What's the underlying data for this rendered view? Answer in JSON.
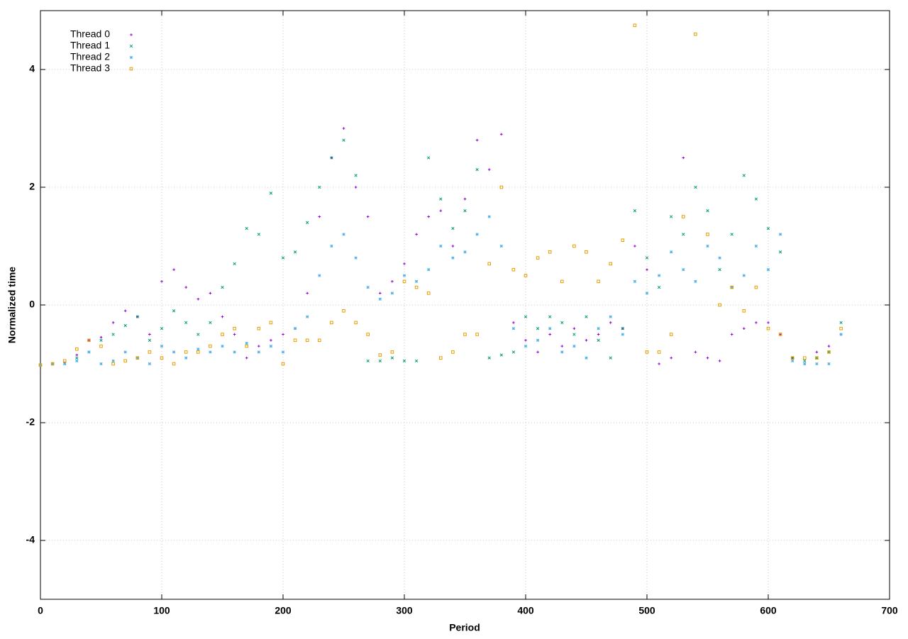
{
  "chart_data": {
    "type": "scatter",
    "x_label": "Period",
    "y_label": "Normalized time",
    "xlim": [
      0,
      700
    ],
    "ylim": [
      -5,
      5
    ],
    "xticks": [
      0,
      100,
      200,
      300,
      400,
      500,
      600,
      700
    ],
    "yticks": [
      -4,
      -2,
      0,
      2,
      4
    ],
    "grid": true,
    "legend": "top-left",
    "x": [
      0,
      10,
      20,
      30,
      40,
      50,
      60,
      70,
      80,
      90,
      100,
      110,
      120,
      130,
      140,
      150,
      160,
      170,
      180,
      190,
      200,
      210,
      220,
      230,
      240,
      250,
      260,
      270,
      280,
      290,
      300,
      310,
      320,
      330,
      340,
      350,
      360,
      370,
      380,
      390,
      400,
      410,
      420,
      430,
      440,
      450,
      460,
      470,
      480,
      490,
      500,
      510,
      520,
      530,
      540,
      550,
      560,
      570,
      580,
      590,
      600,
      610,
      620,
      630,
      640,
      650,
      660
    ],
    "series": [
      {
        "name": "Thread 0",
        "color": "#9400d3",
        "marker": "plus",
        "values": [
          -1.02,
          -1.0,
          -0.98,
          -0.85,
          -0.6,
          -0.55,
          -0.3,
          -0.1,
          -0.2,
          -0.5,
          0.4,
          0.6,
          0.3,
          0.1,
          0.2,
          -0.2,
          -0.5,
          -0.9,
          -0.7,
          -0.6,
          -0.5,
          -0.4,
          0.2,
          1.5,
          2.5,
          3.0,
          2.0,
          1.5,
          0.2,
          0.4,
          0.7,
          1.2,
          1.5,
          1.6,
          1.0,
          1.8,
          2.8,
          2.3,
          2.9,
          -0.3,
          -0.6,
          -0.8,
          -0.5,
          -0.7,
          -0.4,
          -0.6,
          -0.5,
          -0.3,
          -0.4,
          1.0,
          0.6,
          -1.0,
          -0.9,
          2.5,
          -0.8,
          -0.9,
          -0.95,
          -0.5,
          -0.4,
          -0.3,
          -0.3,
          -0.5,
          -0.9,
          -1.0,
          -0.8,
          -0.7,
          -0.5
        ]
      },
      {
        "name": "Thread 1",
        "color": "#009e73",
        "marker": "cross",
        "values": [
          -1.02,
          -1.0,
          -1.0,
          -0.9,
          -0.8,
          -0.6,
          -0.5,
          -0.35,
          -0.2,
          -0.6,
          -0.4,
          -0.1,
          -0.3,
          -0.5,
          -0.3,
          0.3,
          0.7,
          1.3,
          1.2,
          1.9,
          0.8,
          0.9,
          1.4,
          2.0,
          2.5,
          2.8,
          2.2,
          -0.95,
          -0.95,
          -0.9,
          -0.95,
          -0.95,
          2.5,
          1.8,
          1.3,
          1.6,
          2.3,
          -0.9,
          -0.85,
          -0.8,
          -0.2,
          -0.4,
          -0.2,
          -0.3,
          -0.5,
          -0.2,
          -0.6,
          -0.9,
          -0.4,
          1.6,
          0.8,
          0.3,
          1.5,
          1.2,
          2.0,
          1.6,
          0.6,
          1.2,
          2.2,
          1.8,
          1.3,
          0.9,
          -0.9,
          -0.95,
          -0.9,
          -0.8,
          -0.3
        ]
      },
      {
        "name": "Thread 2",
        "color": "#56b4e9",
        "marker": "star",
        "values": [
          -1.02,
          -1.0,
          -1.0,
          -0.95,
          -0.8,
          -1.0,
          -0.95,
          -0.8,
          -0.9,
          -1.0,
          -0.7,
          -0.8,
          -0.9,
          -0.75,
          -0.8,
          -0.7,
          -0.8,
          -0.65,
          -0.8,
          -0.7,
          -0.8,
          -0.4,
          -0.2,
          0.5,
          1.0,
          1.2,
          0.8,
          0.3,
          0.1,
          0.2,
          0.5,
          0.4,
          0.6,
          1.0,
          0.8,
          0.9,
          1.2,
          1.5,
          1.0,
          -0.4,
          -0.7,
          -0.6,
          -0.4,
          -0.8,
          -0.7,
          -0.9,
          -0.4,
          -0.2,
          -0.5,
          0.4,
          0.2,
          0.5,
          0.9,
          0.6,
          0.4,
          1.0,
          0.8,
          0.3,
          0.5,
          1.0,
          0.6,
          1.2,
          -0.95,
          -1.0,
          -1.0,
          -1.0,
          -0.5
        ]
      },
      {
        "name": "Thread 3",
        "color": "#e69f00",
        "marker": "square",
        "values": [
          -1.02,
          -1.0,
          -0.95,
          -0.75,
          -0.6,
          -0.7,
          -1.0,
          -0.95,
          -0.9,
          -0.8,
          -0.9,
          -1.0,
          -0.8,
          -0.8,
          -0.7,
          -0.5,
          -0.4,
          -0.7,
          -0.4,
          -0.3,
          -1.0,
          -0.6,
          -0.6,
          -0.6,
          -0.3,
          -0.1,
          -0.3,
          -0.5,
          -0.85,
          -0.8,
          0.4,
          0.3,
          0.2,
          -0.9,
          -0.8,
          -0.5,
          -0.5,
          0.7,
          2.0,
          0.6,
          0.5,
          0.8,
          0.9,
          0.4,
          1.0,
          0.9,
          0.4,
          0.7,
          1.1,
          4.75,
          -0.8,
          -0.8,
          -0.5,
          1.5,
          4.6,
          1.2,
          0.0,
          0.3,
          -0.1,
          0.3,
          -0.4,
          -0.5,
          -0.9,
          -0.9,
          -0.9,
          -0.8,
          -0.4
        ]
      }
    ]
  }
}
